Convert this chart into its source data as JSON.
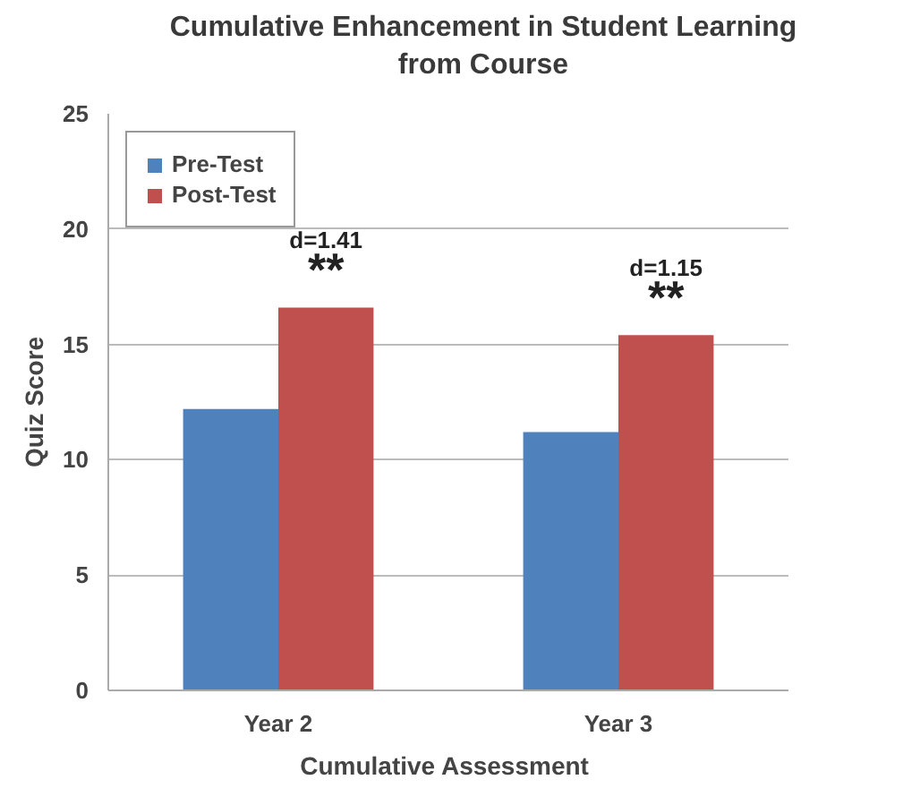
{
  "chart_data": {
    "type": "bar",
    "title": "Cumulative Enhancement in Student Learning\nfrom Course",
    "xlabel": "Cumulative  Assessment",
    "ylabel": "Quiz Score",
    "categories": [
      "Year 2",
      "Year 3"
    ],
    "series": [
      {
        "name": "Pre-Test",
        "color": "#4f81bd",
        "values": [
          12.2,
          11.2
        ]
      },
      {
        "name": "Post-Test",
        "color": "#c0504d",
        "values": [
          16.6,
          15.4
        ]
      }
    ],
    "ylim": [
      0,
      25
    ],
    "yticks": [
      0,
      5,
      10,
      15,
      20,
      25
    ],
    "grid": "y",
    "legend": "top left",
    "annotations": [
      "d=1.41",
      "**",
      "d=1.15",
      "**"
    ]
  }
}
